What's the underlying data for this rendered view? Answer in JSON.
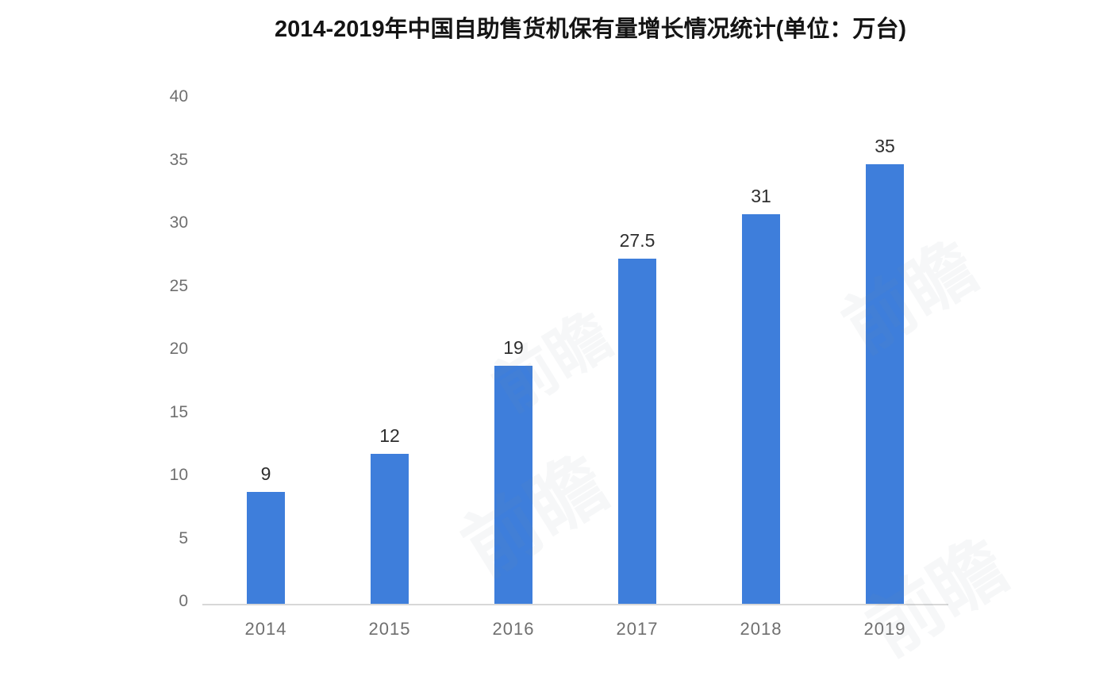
{
  "chart_data": {
    "type": "bar",
    "title": "2014-2019年中国自助售货机保有量增长情况统计(单位：万台)",
    "categories": [
      "2014",
      "2015",
      "2016",
      "2017",
      "2018",
      "2019"
    ],
    "values": [
      9,
      12,
      19,
      27.5,
      31,
      35
    ],
    "value_labels": [
      "9",
      "12",
      "19",
      "27.5",
      "31",
      "35"
    ],
    "xlabel": "",
    "ylabel": "",
    "ylim": [
      0,
      40
    ],
    "yticks": [
      0,
      5,
      10,
      15,
      20,
      25,
      30,
      35,
      40
    ],
    "grid": false,
    "legend": "none",
    "bar_color": "#3E7EDB",
    "axis_line_color": "#D8D8D8",
    "tick_label_color": "#6F6F6F",
    "value_label_color": "#2E2E2E",
    "title_color": "#141414"
  },
  "watermark": {
    "text": "前瞻",
    "color_rgba": "rgba(122,136,158,0.07)"
  }
}
